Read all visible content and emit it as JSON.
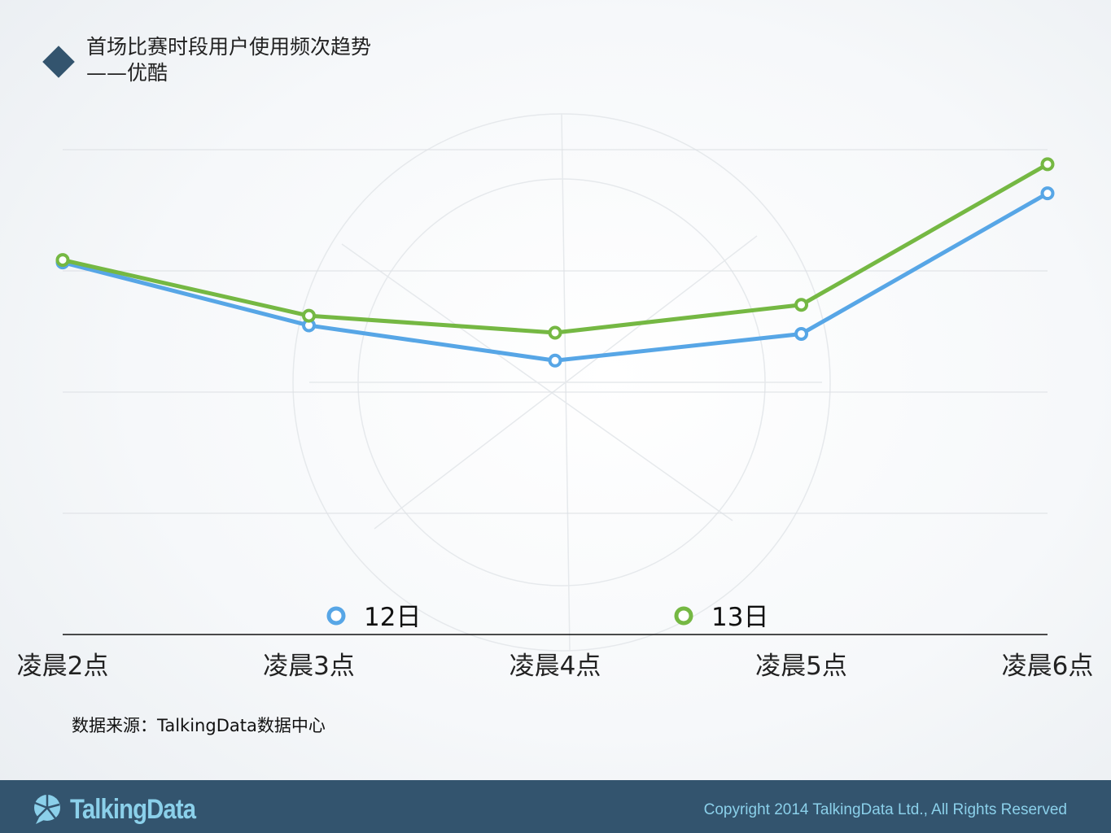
{
  "title": {
    "line1": "首场比赛时段用户使用频次趋势",
    "line2": "——优酷"
  },
  "source": "数据来源：TalkingData数据中心",
  "footer": {
    "logo_text": "TalkingData",
    "copyright": "Copyright 2014 TalkingData Ltd., All Rights Reserved"
  },
  "colors": {
    "accent": "#33546e",
    "series_12": "#57a6e6",
    "series_13": "#75b843",
    "footer_text": "#8bd0ea"
  },
  "chart_data": {
    "type": "line",
    "title": "首场比赛时段用户使用频次趋势 ——优酷",
    "categories": [
      "凌晨2点",
      "凌晨3点",
      "凌晨4点",
      "凌晨5点",
      "凌晨6点"
    ],
    "ylim": [
      0,
      4
    ],
    "grid": true,
    "legend_position": "bottom",
    "series": [
      {
        "name": "12日",
        "color": "#57a6e6",
        "values": [
          3.07,
          2.55,
          2.26,
          2.48,
          3.64
        ]
      },
      {
        "name": "13日",
        "color": "#75b843",
        "values": [
          3.09,
          2.63,
          2.49,
          2.72,
          3.88
        ]
      }
    ]
  }
}
